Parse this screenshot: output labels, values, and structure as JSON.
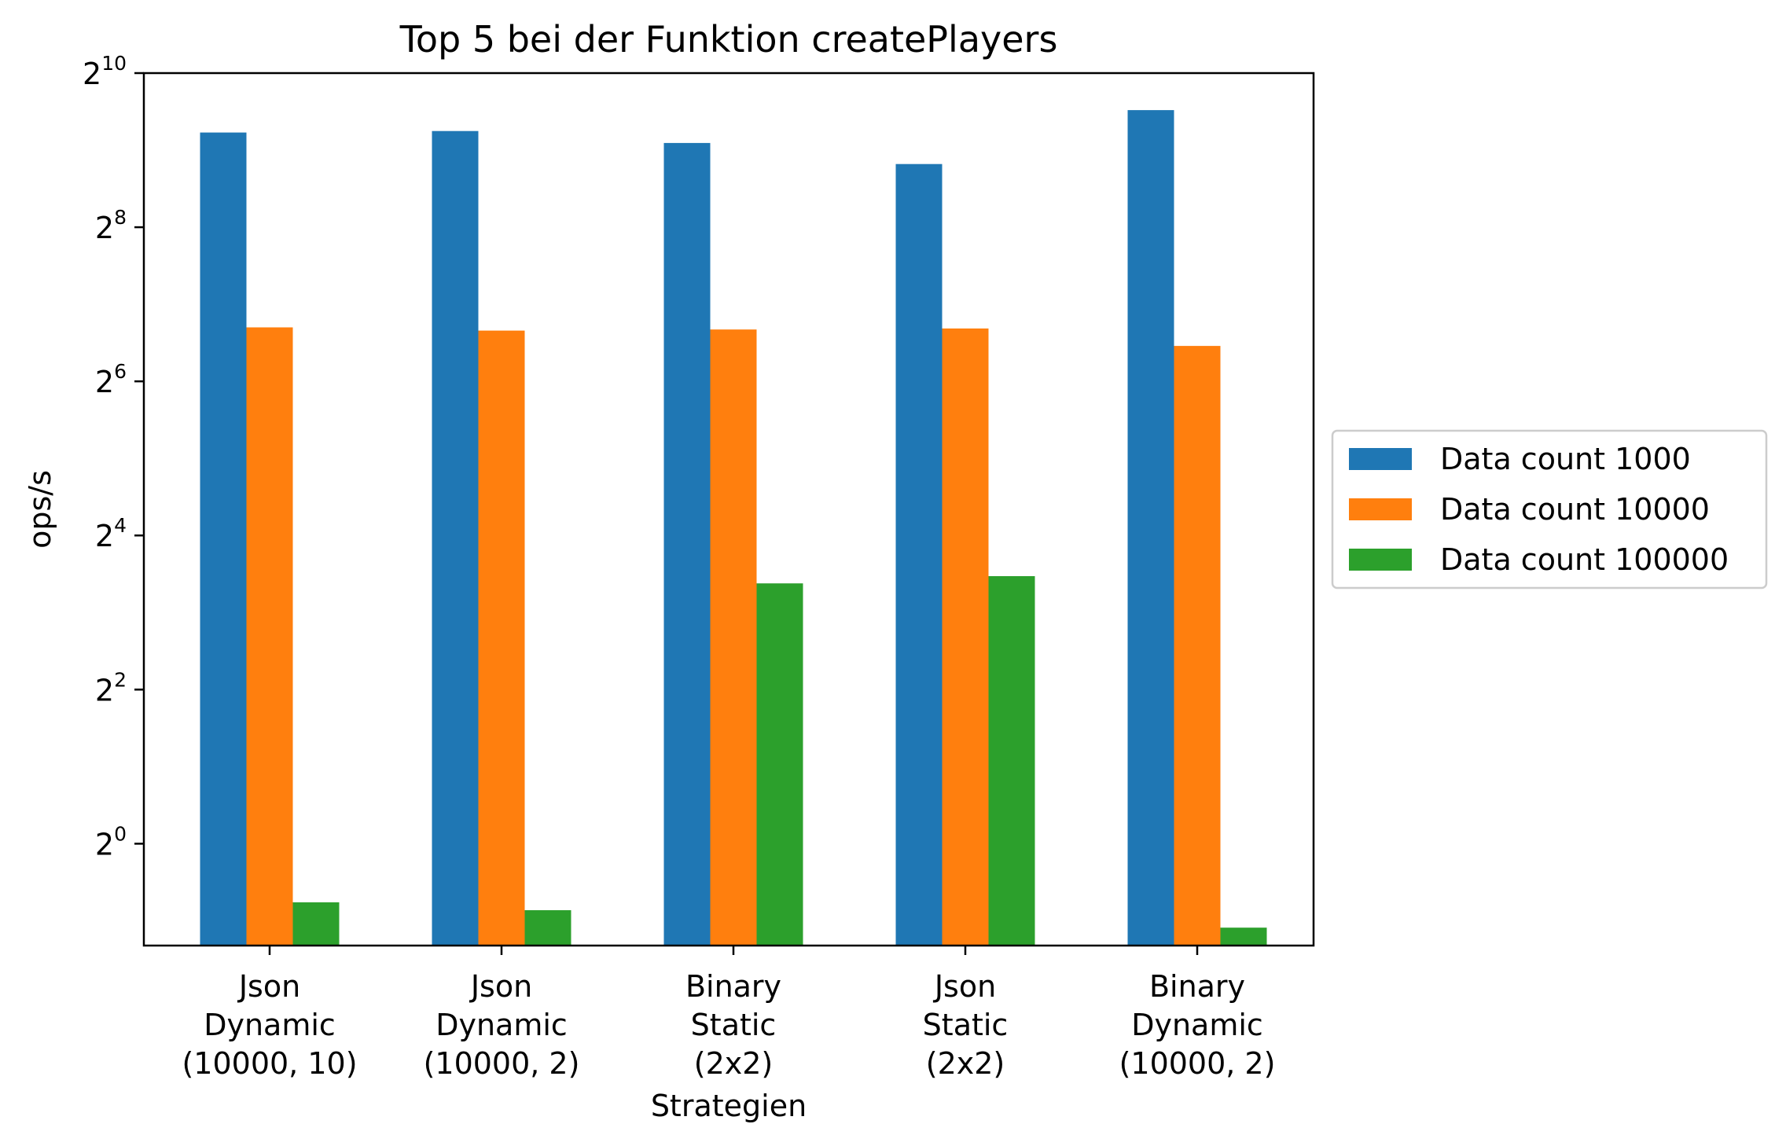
{
  "chart_data": {
    "type": "bar",
    "title": "Top 5 bei der Funktion createPlayers",
    "xlabel": "Strategien",
    "ylabel": "ops/s",
    "yscale": "log2",
    "ylim": [
      0.4,
      1024
    ],
    "yticks": [
      {
        "base": "2",
        "exp": "0"
      },
      {
        "base": "2",
        "exp": "2"
      },
      {
        "base": "2",
        "exp": "4"
      },
      {
        "base": "2",
        "exp": "6"
      },
      {
        "base": "2",
        "exp": "8"
      },
      {
        "base": "2",
        "exp": "10"
      }
    ],
    "categories": [
      [
        "Json",
        "Dynamic",
        "(10000, 10)"
      ],
      [
        "Json",
        "Dynamic",
        "(10000, 2)"
      ],
      [
        "Binary",
        "Static",
        "(2x2)"
      ],
      [
        "Json",
        "Static",
        "(2x2)"
      ],
      [
        "Binary",
        "Dynamic",
        "(10000, 2)"
      ]
    ],
    "series": [
      {
        "name": "Data count 1000",
        "color": "#1f77b4",
        "values": [
          600,
          608,
          546,
          452,
          734
        ]
      },
      {
        "name": "Data count 10000",
        "color": "#ff7f0e",
        "values": [
          104,
          101,
          102,
          103,
          88
        ]
      },
      {
        "name": "Data count 100000",
        "color": "#2ca02c",
        "values": [
          0.59,
          0.55,
          10.4,
          11.1,
          0.47
        ]
      }
    ],
    "legend": "outside-right",
    "grid": false
  }
}
